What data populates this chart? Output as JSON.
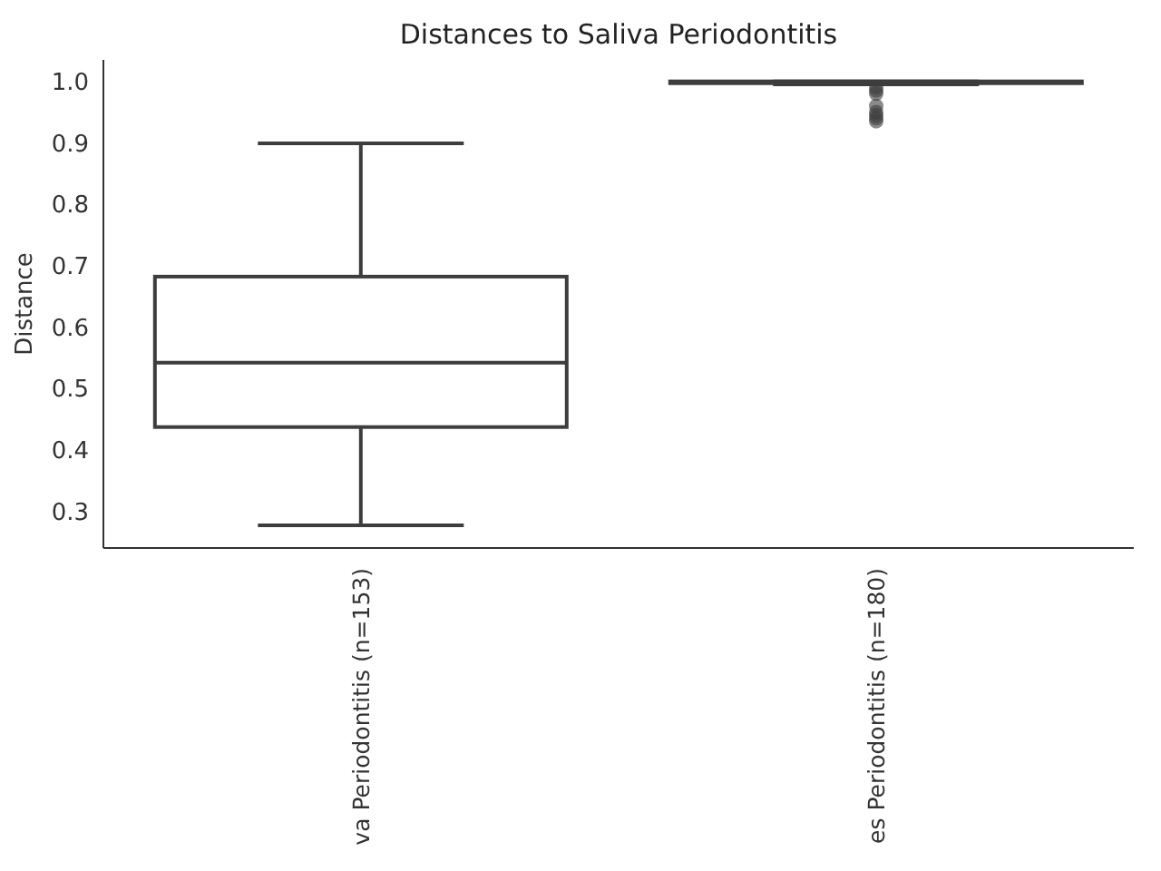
{
  "chart_data": {
    "type": "box",
    "title": "Distances to Saliva Periodontitis",
    "ylabel": "Distance",
    "categories": [
      "va Periodontitis (n=153)",
      "es Periodontitis (n=180)"
    ],
    "color": "#3d3d3d",
    "boxes": [
      {
        "low": 0.277,
        "q1": 0.437,
        "median": 0.542,
        "q3": 0.682,
        "high": 0.899
      },
      {
        "low": 0.995,
        "q1": 0.997,
        "median": 0.999,
        "q3": 1.0,
        "high": 1.0,
        "outliers": [
          0.99,
          0.985,
          0.98,
          0.96,
          0.95,
          0.945,
          0.94,
          0.935
        ]
      }
    ],
    "ylim": [
      0.24,
      1.035
    ],
    "yticks": [
      0.3,
      0.4,
      0.5,
      0.6,
      0.7,
      0.8,
      0.9,
      {
        "value": 1,
        "label": "1.0"
      }
    ],
    "marker": "circle",
    "grid": false
  }
}
